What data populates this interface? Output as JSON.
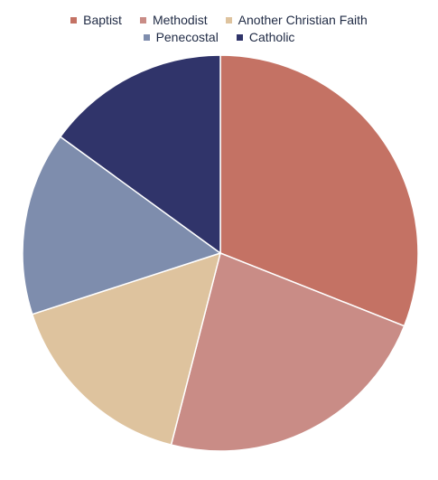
{
  "chart_data": {
    "type": "pie",
    "title": "",
    "legend_position": "top",
    "start_angle": "12 o'clock, clockwise",
    "categories": [
      "Baptist",
      "Methodist",
      "Another Christian Faith",
      "Penecostal",
      "Catholic"
    ],
    "values": [
      31,
      23,
      16,
      15,
      15
    ],
    "colors": [
      "#c47264",
      "#c98c86",
      "#dec39e",
      "#7e8dad",
      "#30346a"
    ]
  }
}
